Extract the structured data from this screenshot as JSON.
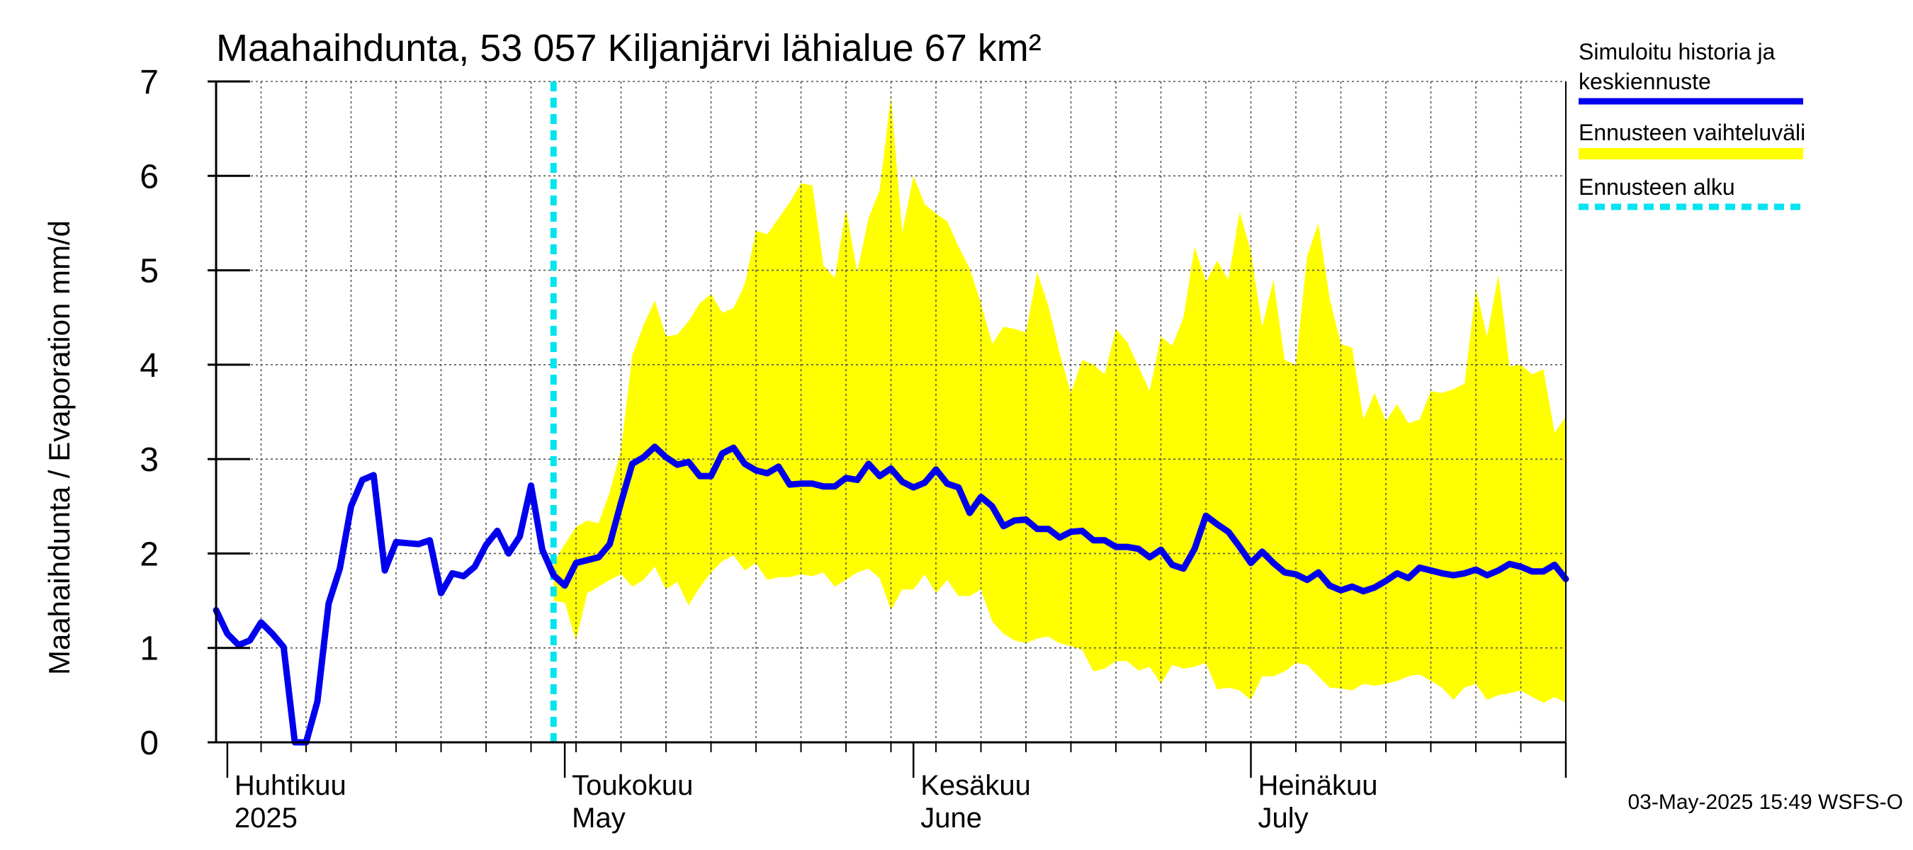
{
  "chart_data": {
    "type": "area",
    "title": "Maahaihdunta, 53 057 Kiljanjärvi lähialue 67 km²",
    "ylabel": "Maahaihdunta / Evaporation   mm/d",
    "xlabel": "",
    "ylim": [
      0,
      7
    ],
    "yticks": [
      0,
      1,
      2,
      3,
      4,
      5,
      6,
      7
    ],
    "grid": true,
    "x_start_date": "2025-03-31",
    "x_days": 120,
    "month_labels": [
      {
        "day": 1,
        "line1": "Huhtikuu",
        "line2": "2025"
      },
      {
        "day": 31,
        "line1": "Toukokuu",
        "line2": "May"
      },
      {
        "day": 62,
        "line1": "Kesäkuu",
        "line2": "June"
      },
      {
        "day": 92,
        "line1": "Heinäkuu",
        "line2": "July"
      }
    ],
    "month_boundaries": [
      1,
      31,
      62,
      92,
      120
    ],
    "forecast_start_day": 30,
    "series": [
      {
        "name": "Simuloitu historia ja keskiennuste",
        "color": "#0000ee",
        "points": [
          [
            0,
            1.4
          ],
          [
            1,
            1.15
          ],
          [
            2,
            1.03
          ],
          [
            3,
            1.08
          ],
          [
            4,
            1.27
          ],
          [
            5,
            1.15
          ],
          [
            6,
            1.01
          ],
          [
            7,
            0.0
          ],
          [
            8,
            0.0
          ],
          [
            9,
            0.43
          ],
          [
            10,
            1.47
          ],
          [
            11,
            1.84
          ],
          [
            12,
            2.5
          ],
          [
            13,
            2.78
          ],
          [
            14,
            2.83
          ],
          [
            15,
            1.82
          ],
          [
            16,
            2.12
          ],
          [
            17,
            2.11
          ],
          [
            18,
            2.1
          ],
          [
            19,
            2.14
          ],
          [
            20,
            1.58
          ],
          [
            21,
            1.79
          ],
          [
            22,
            1.76
          ],
          [
            23,
            1.86
          ],
          [
            24,
            2.09
          ],
          [
            25,
            2.24
          ],
          [
            26,
            2.0
          ],
          [
            27,
            2.18
          ],
          [
            28,
            2.72
          ],
          [
            29,
            2.04
          ],
          [
            30,
            1.77
          ],
          [
            31,
            1.66
          ],
          [
            32,
            1.9
          ],
          [
            33,
            1.93
          ],
          [
            34,
            1.96
          ],
          [
            35,
            2.1
          ],
          [
            36,
            2.54
          ],
          [
            37,
            2.95
          ],
          [
            38,
            3.02
          ],
          [
            39,
            3.13
          ],
          [
            40,
            3.02
          ],
          [
            41,
            2.94
          ],
          [
            42,
            2.97
          ],
          [
            43,
            2.82
          ],
          [
            44,
            2.82
          ],
          [
            45,
            3.06
          ],
          [
            46,
            3.12
          ],
          [
            47,
            2.95
          ],
          [
            48,
            2.88
          ],
          [
            49,
            2.85
          ],
          [
            50,
            2.92
          ],
          [
            51,
            2.73
          ],
          [
            52,
            2.74
          ],
          [
            53,
            2.74
          ],
          [
            54,
            2.71
          ],
          [
            55,
            2.71
          ],
          [
            56,
            2.8
          ],
          [
            57,
            2.78
          ],
          [
            58,
            2.95
          ],
          [
            59,
            2.82
          ],
          [
            60,
            2.9
          ],
          [
            61,
            2.76
          ],
          [
            62,
            2.7
          ],
          [
            63,
            2.75
          ],
          [
            64,
            2.89
          ],
          [
            65,
            2.74
          ],
          [
            66,
            2.7
          ],
          [
            67,
            2.43
          ],
          [
            68,
            2.6
          ],
          [
            69,
            2.5
          ],
          [
            70,
            2.29
          ],
          [
            71,
            2.35
          ],
          [
            72,
            2.36
          ],
          [
            73,
            2.26
          ],
          [
            74,
            2.26
          ],
          [
            75,
            2.17
          ],
          [
            76,
            2.23
          ],
          [
            77,
            2.24
          ],
          [
            78,
            2.14
          ],
          [
            79,
            2.14
          ],
          [
            80,
            2.07
          ],
          [
            81,
            2.07
          ],
          [
            82,
            2.05
          ],
          [
            83,
            1.96
          ],
          [
            84,
            2.04
          ],
          [
            85,
            1.88
          ],
          [
            86,
            1.84
          ],
          [
            87,
            2.05
          ],
          [
            88,
            2.4
          ],
          [
            89,
            2.31
          ],
          [
            90,
            2.23
          ],
          [
            91,
            2.07
          ],
          [
            92,
            1.9
          ],
          [
            93,
            2.02
          ],
          [
            94,
            1.9
          ],
          [
            95,
            1.8
          ],
          [
            96,
            1.78
          ],
          [
            97,
            1.72
          ],
          [
            98,
            1.8
          ],
          [
            99,
            1.66
          ],
          [
            100,
            1.61
          ],
          [
            101,
            1.65
          ],
          [
            102,
            1.6
          ],
          [
            103,
            1.64
          ],
          [
            104,
            1.71
          ],
          [
            105,
            1.79
          ],
          [
            106,
            1.74
          ],
          [
            107,
            1.85
          ],
          [
            108,
            1.82
          ],
          [
            109,
            1.79
          ],
          [
            110,
            1.77
          ],
          [
            111,
            1.79
          ],
          [
            112,
            1.83
          ],
          [
            113,
            1.77
          ],
          [
            114,
            1.82
          ],
          [
            115,
            1.89
          ],
          [
            116,
            1.86
          ],
          [
            117,
            1.81
          ],
          [
            118,
            1.81
          ],
          [
            119,
            1.88
          ],
          [
            120,
            1.73
          ]
        ]
      },
      {
        "name": "Ennusteen vaihteluväli",
        "color": "#ffff00",
        "points_upper": [
          [
            30,
            1.9
          ],
          [
            31,
            2.1
          ],
          [
            32,
            2.28
          ],
          [
            33,
            2.35
          ],
          [
            34,
            2.32
          ],
          [
            35,
            2.65
          ],
          [
            36,
            3.1
          ],
          [
            37,
            4.1
          ],
          [
            38,
            4.42
          ],
          [
            39,
            4.68
          ],
          [
            40,
            4.3
          ],
          [
            41,
            4.32
          ],
          [
            42,
            4.46
          ],
          [
            43,
            4.65
          ],
          [
            44,
            4.75
          ],
          [
            45,
            4.55
          ],
          [
            46,
            4.6
          ],
          [
            47,
            4.85
          ],
          [
            48,
            5.42
          ],
          [
            49,
            5.38
          ],
          [
            50,
            5.55
          ],
          [
            51,
            5.72
          ],
          [
            52,
            5.92
          ],
          [
            53,
            5.9
          ],
          [
            54,
            5.05
          ],
          [
            55,
            4.92
          ],
          [
            56,
            5.65
          ],
          [
            57,
            4.98
          ],
          [
            58,
            5.55
          ],
          [
            59,
            5.85
          ],
          [
            60,
            6.85
          ],
          [
            61,
            5.4
          ],
          [
            62,
            6.0
          ],
          [
            63,
            5.7
          ],
          [
            64,
            5.6
          ],
          [
            65,
            5.52
          ],
          [
            66,
            5.25
          ],
          [
            67,
            5.02
          ],
          [
            68,
            4.65
          ],
          [
            69,
            4.22
          ],
          [
            70,
            4.4
          ],
          [
            71,
            4.38
          ],
          [
            72,
            4.34
          ],
          [
            73,
            4.98
          ],
          [
            74,
            4.62
          ],
          [
            75,
            4.12
          ],
          [
            76,
            3.7
          ],
          [
            77,
            4.05
          ],
          [
            78,
            4.0
          ],
          [
            79,
            3.9
          ],
          [
            80,
            4.38
          ],
          [
            81,
            4.24
          ],
          [
            82,
            3.98
          ],
          [
            83,
            3.72
          ],
          [
            84,
            4.3
          ],
          [
            85,
            4.2
          ],
          [
            86,
            4.5
          ],
          [
            87,
            5.25
          ],
          [
            88,
            4.88
          ],
          [
            89,
            5.1
          ],
          [
            90,
            4.9
          ],
          [
            91,
            5.62
          ],
          [
            92,
            5.2
          ],
          [
            93,
            4.4
          ],
          [
            94,
            4.9
          ],
          [
            95,
            4.05
          ],
          [
            96,
            4.0
          ],
          [
            97,
            5.15
          ],
          [
            98,
            5.5
          ],
          [
            99,
            4.7
          ],
          [
            100,
            4.22
          ],
          [
            101,
            4.18
          ],
          [
            102,
            3.42
          ],
          [
            103,
            3.7
          ],
          [
            104,
            3.4
          ],
          [
            105,
            3.58
          ],
          [
            106,
            3.38
          ],
          [
            107,
            3.42
          ],
          [
            108,
            3.72
          ],
          [
            109,
            3.7
          ],
          [
            110,
            3.74
          ],
          [
            111,
            3.8
          ],
          [
            112,
            4.8
          ],
          [
            113,
            4.3
          ],
          [
            114,
            4.95
          ],
          [
            115,
            3.98
          ],
          [
            116,
            4.0
          ],
          [
            117,
            3.9
          ],
          [
            118,
            3.95
          ],
          [
            119,
            3.28
          ],
          [
            120,
            3.45
          ]
        ],
        "points_lower": [
          [
            30,
            1.5
          ],
          [
            31,
            1.48
          ],
          [
            32,
            1.08
          ],
          [
            33,
            1.58
          ],
          [
            34,
            1.65
          ],
          [
            35,
            1.72
          ],
          [
            36,
            1.78
          ],
          [
            37,
            1.65
          ],
          [
            38,
            1.72
          ],
          [
            39,
            1.86
          ],
          [
            40,
            1.62
          ],
          [
            41,
            1.7
          ],
          [
            42,
            1.45
          ],
          [
            43,
            1.64
          ],
          [
            44,
            1.8
          ],
          [
            45,
            1.92
          ],
          [
            46,
            1.98
          ],
          [
            47,
            1.82
          ],
          [
            48,
            1.9
          ],
          [
            49,
            1.72
          ],
          [
            50,
            1.75
          ],
          [
            51,
            1.75
          ],
          [
            52,
            1.78
          ],
          [
            53,
            1.76
          ],
          [
            54,
            1.8
          ],
          [
            55,
            1.65
          ],
          [
            56,
            1.72
          ],
          [
            57,
            1.8
          ],
          [
            58,
            1.84
          ],
          [
            59,
            1.74
          ],
          [
            60,
            1.4
          ],
          [
            61,
            1.62
          ],
          [
            62,
            1.62
          ],
          [
            63,
            1.78
          ],
          [
            64,
            1.58
          ],
          [
            65,
            1.72
          ],
          [
            66,
            1.55
          ],
          [
            67,
            1.55
          ],
          [
            68,
            1.62
          ],
          [
            69,
            1.28
          ],
          [
            70,
            1.15
          ],
          [
            71,
            1.08
          ],
          [
            72,
            1.05
          ],
          [
            73,
            1.1
          ],
          [
            74,
            1.12
          ],
          [
            75,
            1.05
          ],
          [
            76,
            1.02
          ],
          [
            77,
            0.98
          ],
          [
            78,
            0.75
          ],
          [
            79,
            0.78
          ],
          [
            80,
            0.86
          ],
          [
            81,
            0.86
          ],
          [
            82,
            0.76
          ],
          [
            83,
            0.8
          ],
          [
            84,
            0.62
          ],
          [
            85,
            0.82
          ],
          [
            86,
            0.78
          ],
          [
            87,
            0.8
          ],
          [
            88,
            0.84
          ],
          [
            89,
            0.56
          ],
          [
            90,
            0.58
          ],
          [
            91,
            0.55
          ],
          [
            92,
            0.45
          ],
          [
            93,
            0.7
          ],
          [
            94,
            0.7
          ],
          [
            95,
            0.75
          ],
          [
            96,
            0.84
          ],
          [
            97,
            0.82
          ],
          [
            98,
            0.7
          ],
          [
            99,
            0.58
          ],
          [
            100,
            0.57
          ],
          [
            101,
            0.55
          ],
          [
            102,
            0.62
          ],
          [
            103,
            0.6
          ],
          [
            104,
            0.62
          ],
          [
            105,
            0.65
          ],
          [
            106,
            0.7
          ],
          [
            107,
            0.72
          ],
          [
            108,
            0.65
          ],
          [
            109,
            0.58
          ],
          [
            110,
            0.45
          ],
          [
            111,
            0.58
          ],
          [
            112,
            0.62
          ],
          [
            113,
            0.45
          ],
          [
            114,
            0.5
          ],
          [
            115,
            0.52
          ],
          [
            116,
            0.55
          ],
          [
            117,
            0.48
          ],
          [
            118,
            0.42
          ],
          [
            119,
            0.48
          ],
          [
            120,
            0.42
          ]
        ]
      }
    ],
    "legend": {
      "position": "right",
      "entries": [
        {
          "label_line1": "Simuloitu historia ja",
          "label_line2": "keskiennuste",
          "color": "#0000ee",
          "style": "solid"
        },
        {
          "label_line1": "Ennusteen vaihteluväli",
          "label_line2": "",
          "color": "#ffff00",
          "style": "solid"
        },
        {
          "label_line1": "Ennusteen alku",
          "label_line2": "",
          "color": "#00e5ee",
          "style": "dashed"
        }
      ]
    },
    "forecast_line_color": "#00e5ee",
    "timestamp": "03-May-2025 15:49 WSFS-O"
  }
}
